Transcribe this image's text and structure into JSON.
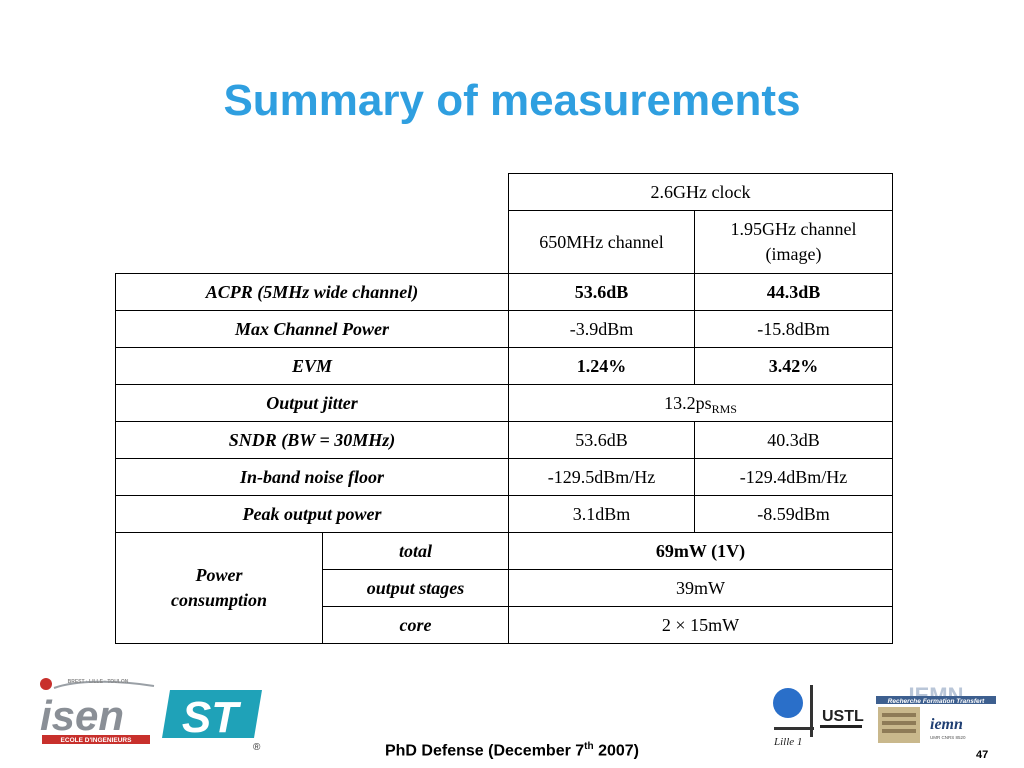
{
  "slide": {
    "title": "Summary of measurements",
    "page_number": "47"
  },
  "footer": {
    "prefix": "PhD Defense (December 7",
    "superscript": "th",
    "suffix": " 2007)"
  },
  "table": {
    "clock_header": "2.6GHz clock",
    "col1_header": "650MHz channel",
    "col2_header_line1": "1.95GHz channel",
    "col2_header_line2": "(image)",
    "rows": [
      {
        "label": "ACPR (5MHz wide channel)",
        "c1": "53.6dB",
        "c2": "44.3dB"
      },
      {
        "label": "Max Channel Power",
        "c1": "-3.9dBm",
        "c2": "-15.8dBm"
      },
      {
        "label": "EVM",
        "c1": "1.24%",
        "c2": "3.42%"
      },
      {
        "label": "Output jitter",
        "merged_value": "13.2ps",
        "merged_sub": "RMS"
      },
      {
        "label": "SNDR (BW = 30MHz)",
        "c1": "53.6dB",
        "c2": "40.3dB"
      },
      {
        "label": "In-band noise floor",
        "c1": "-129.5dBm/Hz",
        "c2": "-129.4dBm/Hz"
      },
      {
        "label": "Peak output power",
        "c1": "3.1dBm",
        "c2": "-8.59dBm"
      }
    ],
    "power": {
      "label_line1": "Power",
      "label_line2": "consumption",
      "items": [
        {
          "label": "total",
          "value": "69mW (1V)"
        },
        {
          "label": "output stages",
          "value": "39mW"
        },
        {
          "label": "core",
          "value": "2 × 15mW"
        }
      ]
    }
  },
  "logos": {
    "isen_text": "isen",
    "isen_cities": "BREST · LILLE · TOULON",
    "isen_subtitle": "ECOLE D'INGENIEURS",
    "st_text": "ST",
    "st_registered": "®",
    "ustl_text": "USTL",
    "ustl_city": "Lille 1",
    "iemn_text": "IEMN",
    "iemn_tagline": "Recherche Formation Transfert",
    "iemn_small": "iemn",
    "iemn_small_caption": "UMR CNRS 8520"
  },
  "colors": {
    "title": "#2f9fe0",
    "st_teal": "#1fa2b8",
    "isen_red": "#c8302c",
    "ustl_blue": "#2a6fc9"
  }
}
